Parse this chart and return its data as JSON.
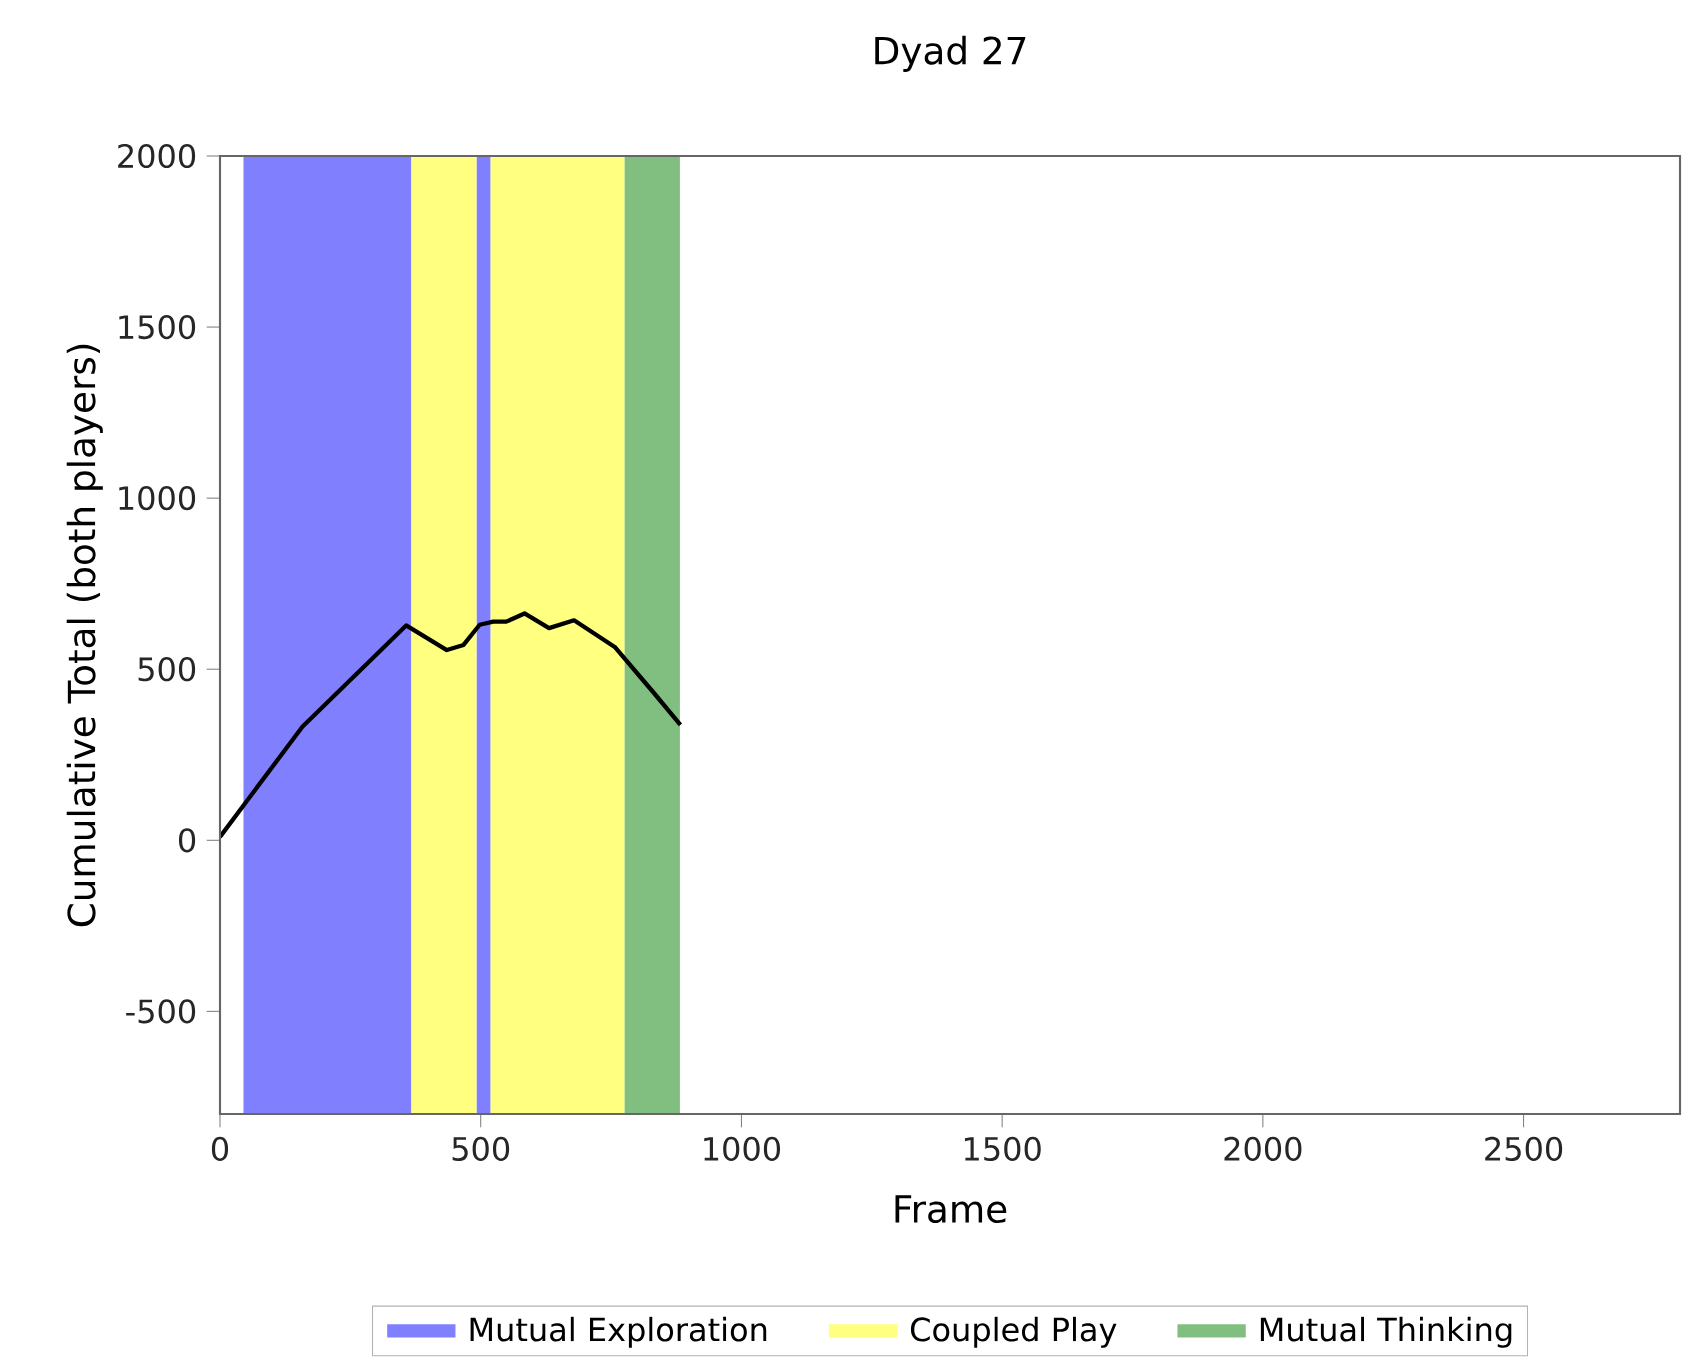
{
  "chart_data": {
    "type": "line",
    "title": "Dyad 27",
    "xlabel": "Frame",
    "ylabel": "Cumulative Total (both players)",
    "xlim": [
      0,
      2800
    ],
    "ylim": [
      -800,
      2000
    ],
    "xticks": [
      0,
      500,
      1000,
      1500,
      2000,
      2500
    ],
    "yticks": [
      -500,
      0,
      500,
      1000,
      1500,
      2000
    ],
    "series": [
      {
        "color": "#000000",
        "x": [
          0,
          158,
          357,
          435,
          467,
          498,
          524,
          549,
          584,
          631,
          679,
          757,
          833,
          883
        ],
        "values": [
          10,
          332,
          628,
          556,
          571,
          630,
          639,
          639,
          663,
          620,
          643,
          565,
          429,
          337
        ]
      }
    ],
    "bands": [
      {
        "axis": "x",
        "from": 45,
        "to": 367,
        "label": "Mutual Exploration",
        "color": "#8080ff"
      },
      {
        "axis": "x",
        "from": 367,
        "to": 492,
        "label": "Coupled Play",
        "color": "#ffff80"
      },
      {
        "axis": "x",
        "from": 492,
        "to": 519,
        "color": "#8080ff"
      },
      {
        "axis": "x",
        "from": 519,
        "to": 776,
        "color": "#ffff80"
      },
      {
        "axis": "x",
        "from": 776,
        "to": 882,
        "label": "Mutual Thinking",
        "color": "#80bf80"
      }
    ],
    "legend": "bottom",
    "grid": false,
    "marker": "none",
    "line_style": "solid"
  }
}
